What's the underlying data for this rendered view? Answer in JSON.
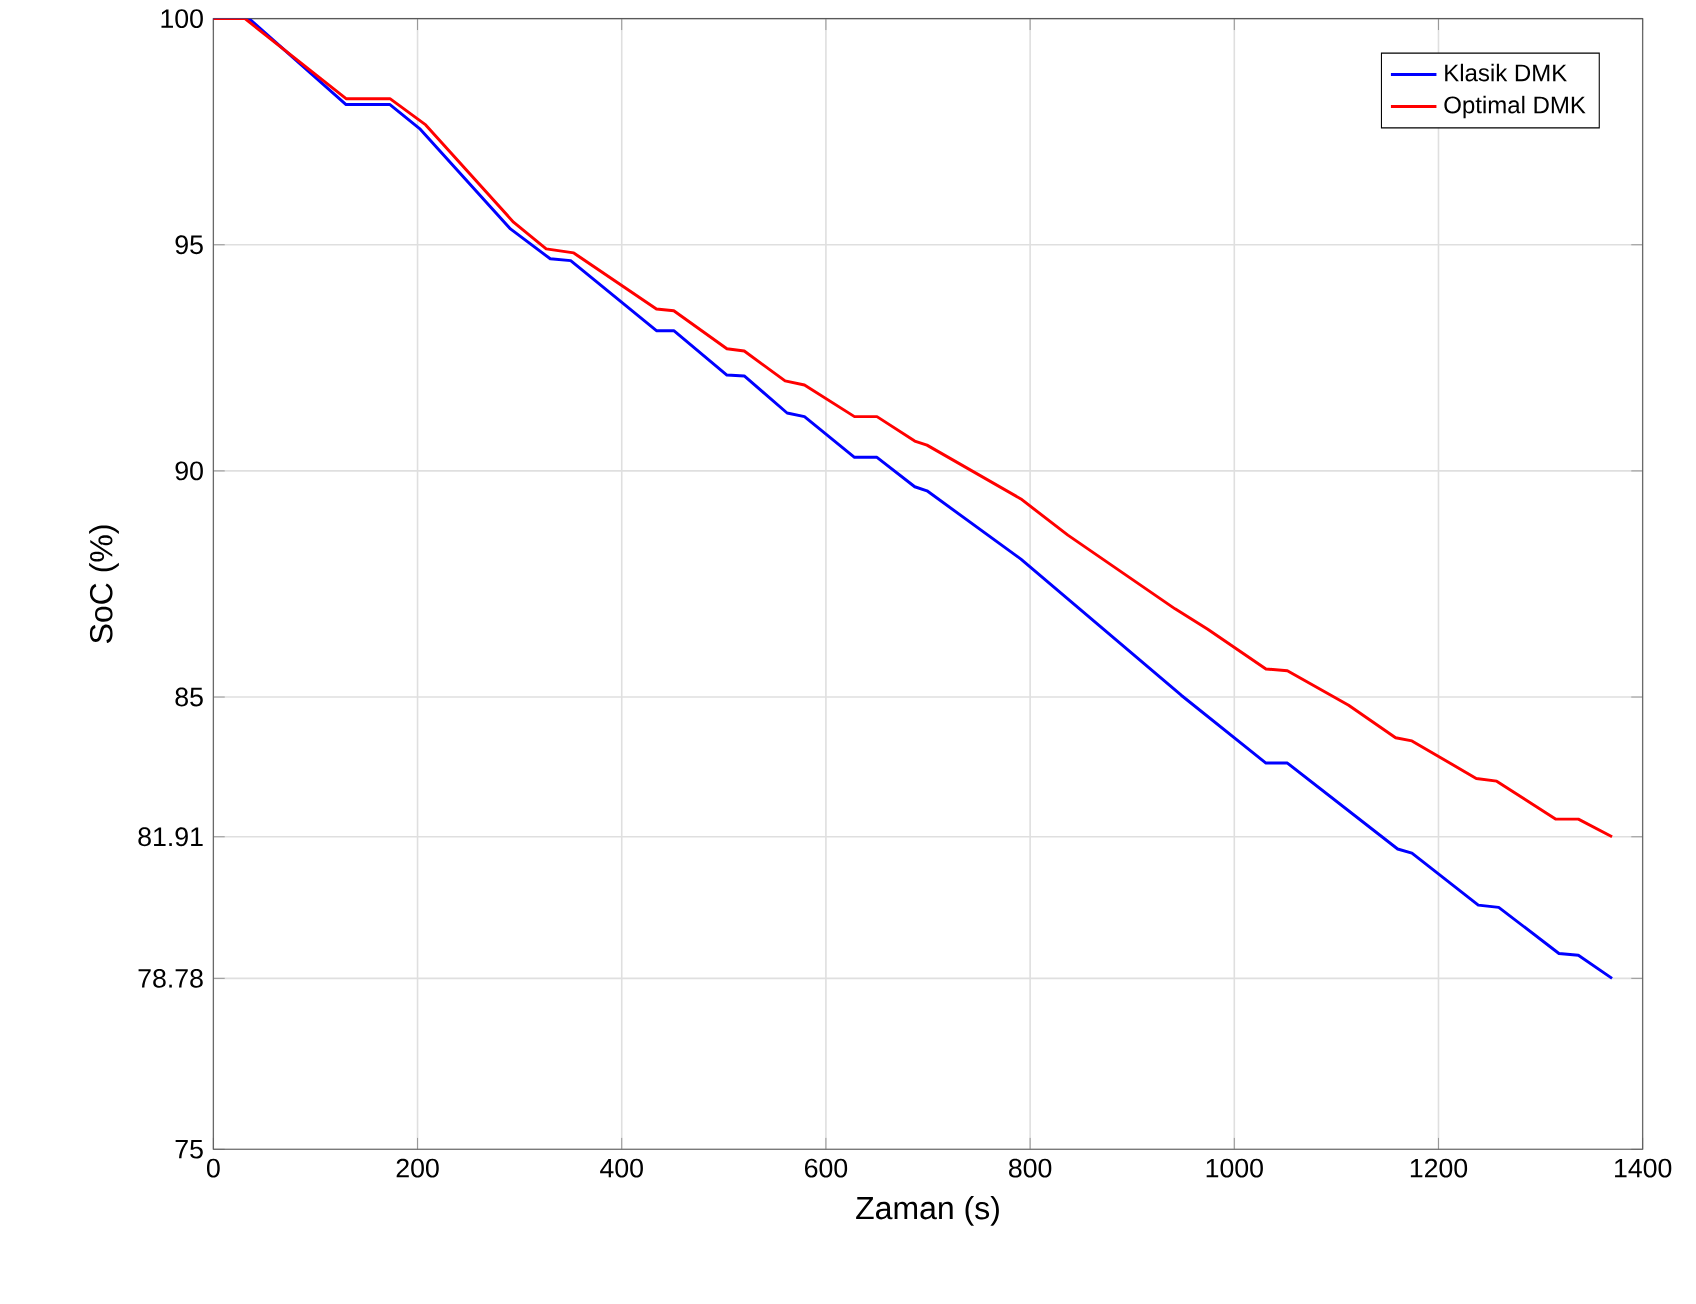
{
  "chart_data": {
    "type": "line",
    "xlabel": "Zaman (s)",
    "ylabel": "SoC (%)",
    "xlim": [
      0,
      1400
    ],
    "ylim": [
      75,
      100
    ],
    "xticks": [
      0,
      200,
      400,
      600,
      800,
      1000,
      1200,
      1400
    ],
    "yticks": [
      75,
      78.78,
      81.91,
      85,
      90,
      95,
      100
    ],
    "grid": true,
    "legend": "top right",
    "line_style": "solid",
    "marker": "none",
    "series": [
      {
        "name": "Klasik DMK",
        "color": "#0000ff",
        "x": [
          0,
          35,
          130,
          173,
          202,
          291,
          330,
          350,
          434,
          451,
          503,
          520,
          562,
          579,
          628,
          650,
          687,
          699,
          791,
          948,
          1031,
          1052,
          1160,
          1174,
          1239,
          1259,
          1318,
          1337,
          1370
        ],
        "values": [
          100,
          100,
          98.1,
          98.1,
          97.57,
          95.35,
          94.69,
          94.65,
          93.1,
          93.1,
          92.12,
          92.1,
          91.28,
          91.2,
          90.3,
          90.3,
          89.65,
          89.56,
          88.05,
          85.04,
          83.54,
          83.54,
          81.64,
          81.55,
          80.4,
          80.35,
          79.33,
          79.29,
          78.78
        ]
      },
      {
        "name": "Optimal DMK",
        "color": "#ff0000",
        "x": [
          0,
          31,
          130,
          173,
          208,
          294,
          326,
          353,
          434,
          451,
          503,
          520,
          560,
          579,
          628,
          650,
          687,
          699,
          791,
          837,
          942,
          974,
          1031,
          1052,
          1112,
          1158,
          1174,
          1237,
          1257,
          1315,
          1337,
          1370
        ],
        "values": [
          100,
          100,
          98.23,
          98.23,
          97.65,
          95.5,
          94.91,
          94.82,
          93.58,
          93.54,
          92.7,
          92.65,
          91.99,
          91.9,
          91.2,
          91.2,
          90.66,
          90.57,
          89.38,
          88.58,
          86.95,
          86.5,
          85.62,
          85.58,
          84.82,
          84.1,
          84.03,
          83.2,
          83.14,
          82.3,
          82.3,
          81.91
        ]
      }
    ]
  }
}
